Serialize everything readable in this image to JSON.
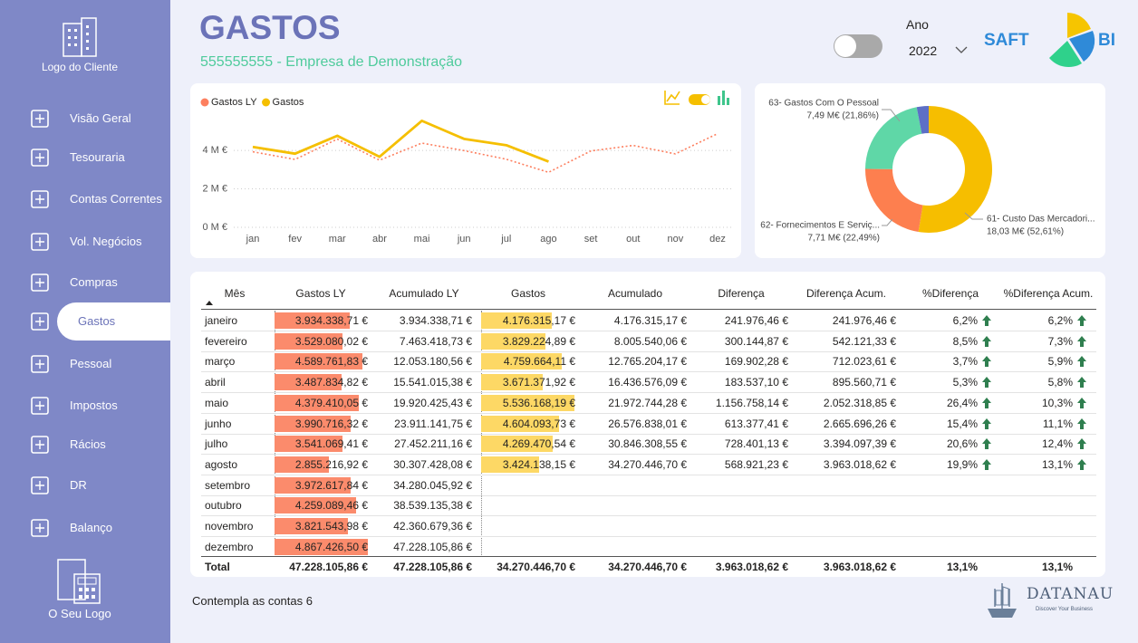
{
  "sidebar": {
    "client_logo": "Logo do Cliente",
    "menu": [
      "Visão Geral",
      "Tesouraria",
      "Contas Correntes",
      "Vol. Negócios",
      "Compras",
      "Gastos",
      "Pessoal",
      "Impostos",
      "Rácios",
      "DR",
      "Balanço"
    ],
    "active_item": 5,
    "your_logo": "O Seu Logo"
  },
  "header": {
    "title": "GASTOS",
    "subtitle": "555555555 - Empresa de Demonstração",
    "year_label": "Ano",
    "year": "2022",
    "brand": [
      "SAFT",
      "BI"
    ]
  },
  "chart_data": [
    {
      "type": "line",
      "categories": [
        "jan",
        "fev",
        "mar",
        "abr",
        "mai",
        "jun",
        "jul",
        "ago",
        "set",
        "out",
        "nov",
        "dez"
      ],
      "series": [
        {
          "name": "Gastos LY",
          "color": "#fd7f5f",
          "style": "dotted",
          "values": [
            3.93,
            3.53,
            4.59,
            3.49,
            4.38,
            3.99,
            3.54,
            2.86,
            3.97,
            4.26,
            3.82,
            4.87
          ]
        },
        {
          "name": "Gastos",
          "color": "#f5bf00",
          "style": "solid",
          "values": [
            4.18,
            3.83,
            4.76,
            3.67,
            5.54,
            4.6,
            4.27,
            3.42,
            null,
            null,
            null,
            null
          ]
        }
      ],
      "ylim": [
        0,
        6.5
      ],
      "yticks": [
        {
          "value": 0,
          "label": "0 M €"
        },
        {
          "value": 2,
          "label": "2 M €"
        },
        {
          "value": 4,
          "label": "4 M €"
        }
      ],
      "grid": true
    },
    {
      "type": "donut",
      "categories": [
        "61- Custo Das Mercadori...",
        "62- Fornecimentos E Serviç...",
        "63- Gastos Com O Pessoal",
        null
      ],
      "values": [
        52.61,
        22.49,
        21.86,
        3.04
      ],
      "value_labels": [
        "18,03 M€ (52,61%)",
        "7,71 M€ (22,49%)",
        "7,49 M€ (21,86%)",
        null
      ],
      "colors": [
        "#f6be00",
        "#fd7f4f",
        "#5fd7a7",
        "#5d6fc6"
      ]
    }
  ],
  "table": {
    "columns": [
      "Mês",
      "Gastos LY",
      "Acumulado LY",
      "Gastos",
      "Acumulado",
      "Diferença",
      "Diferença Acum.",
      "%Diferença",
      "%Diferença Acum."
    ],
    "rows": [
      [
        "janeiro",
        "3.934.338,71 €",
        "3.934.338,71 €",
        "4.176.315,17 €",
        "4.176.315,17 €",
        "241.976,46 €",
        "241.976,46 €",
        "6,2%",
        "6,2%"
      ],
      [
        "fevereiro",
        "3.529.080,02 €",
        "7.463.418,73 €",
        "3.829.224,89 €",
        "8.005.540,06 €",
        "300.144,87 €",
        "542.121,33 €",
        "8,5%",
        "7,3%"
      ],
      [
        "março",
        "4.589.761,83 €",
        "12.053.180,56 €",
        "4.759.664,11 €",
        "12.765.204,17 €",
        "169.902,28 €",
        "712.023,61 €",
        "3,7%",
        "5,9%"
      ],
      [
        "abril",
        "3.487.834,82 €",
        "15.541.015,38 €",
        "3.671.371,92 €",
        "16.436.576,09 €",
        "183.537,10 €",
        "895.560,71 €",
        "5,3%",
        "5,8%"
      ],
      [
        "maio",
        "4.379.410,05 €",
        "19.920.425,43 €",
        "5.536.168,19 €",
        "21.972.744,28 €",
        "1.156.758,14 €",
        "2.052.318,85 €",
        "26,4%",
        "10,3%"
      ],
      [
        "junho",
        "3.990.716,32 €",
        "23.911.141,75 €",
        "4.604.093,73 €",
        "26.576.838,01 €",
        "613.377,41 €",
        "2.665.696,26 €",
        "15,4%",
        "11,1%"
      ],
      [
        "julho",
        "3.541.069,41 €",
        "27.452.211,16 €",
        "4.269.470,54 €",
        "30.846.308,55 €",
        "728.401,13 €",
        "3.394.097,39 €",
        "20,6%",
        "12,4%"
      ],
      [
        "agosto",
        "2.855.216,92 €",
        "30.307.428,08 €",
        "3.424.138,15 €",
        "34.270.446,70 €",
        "568.921,23 €",
        "3.963.018,62 €",
        "19,9%",
        "13,1%"
      ],
      [
        "setembro",
        "3.972.617,84 €",
        "34.280.045,92 €",
        null,
        null,
        null,
        null,
        null,
        null
      ],
      [
        "outubro",
        "4.259.089,46 €",
        "38.539.135,38 €",
        null,
        null,
        null,
        null,
        null,
        null
      ],
      [
        "novembro",
        "3.821.543,98 €",
        "42.360.679,36 €",
        null,
        null,
        null,
        null,
        null,
        null
      ],
      [
        "dezembro",
        "4.867.426,50 €",
        "47.228.105,86 €",
        null,
        null,
        null,
        null,
        null,
        null
      ]
    ],
    "total": [
      "Total",
      "47.228.105,86 €",
      "47.228.105,86 €",
      "34.270.446,70 €",
      "34.270.446,70 €",
      "3.963.018,62 €",
      "3.963.018,62 €",
      "13,1%",
      "13,1%"
    ],
    "bar_colors": {
      "1": "#fb8b6c",
      "3": "#fdd865"
    }
  },
  "footer": {
    "note": "Contempla as contas 6",
    "partner": "DATANAU",
    "partner_tagline": "Discover Your Business"
  }
}
